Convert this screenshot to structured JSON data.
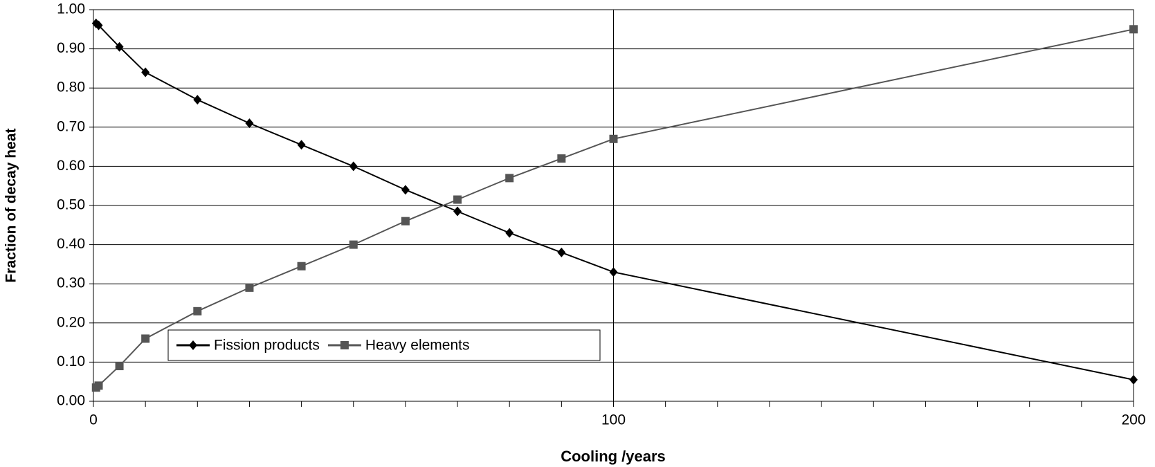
{
  "chart_data": {
    "type": "line",
    "xlabel": "Cooling /years",
    "ylabel": "Fraction of decay heat",
    "x": [
      0.5,
      1,
      5,
      10,
      20,
      30,
      40,
      50,
      60,
      70,
      80,
      90,
      100,
      200
    ],
    "series": [
      {
        "name": "Fission products",
        "color": "#000000",
        "marker": "diamond",
        "values": [
          0.965,
          0.96,
          0.905,
          0.84,
          0.77,
          0.71,
          0.655,
          0.6,
          0.54,
          0.485,
          0.43,
          0.38,
          0.33,
          0.055
        ]
      },
      {
        "name": "Heavy elements",
        "color": "#555555",
        "marker": "square",
        "values": [
          0.035,
          0.04,
          0.09,
          0.16,
          0.23,
          0.29,
          0.345,
          0.4,
          0.46,
          0.515,
          0.57,
          0.62,
          0.67,
          0.95
        ]
      }
    ],
    "xlim": [
      0,
      200
    ],
    "xticks": [
      0,
      100,
      200
    ],
    "xminorticks": [
      10,
      20,
      30,
      40,
      50,
      60,
      70,
      80,
      90,
      110,
      120,
      130,
      140,
      150,
      160,
      170,
      180,
      190
    ],
    "ylim": [
      0,
      1
    ],
    "yticks": [
      {
        "value": 0,
        "label": "0.00"
      },
      {
        "value": 0.1,
        "label": "0.10"
      },
      {
        "value": 0.2,
        "label": "0.20"
      },
      {
        "value": 0.3,
        "label": "0.30"
      },
      {
        "value": 0.4,
        "label": "0.40"
      },
      {
        "value": 0.5,
        "label": "0.50"
      },
      {
        "value": 0.6,
        "label": "0.60"
      },
      {
        "value": 0.7,
        "label": "0.70"
      },
      {
        "value": 0.8,
        "label": "0.80"
      },
      {
        "value": 0.9,
        "label": "0.90"
      },
      {
        "value": 1,
        "label": "1.00"
      }
    ],
    "grid": true,
    "legend": "lower left"
  }
}
